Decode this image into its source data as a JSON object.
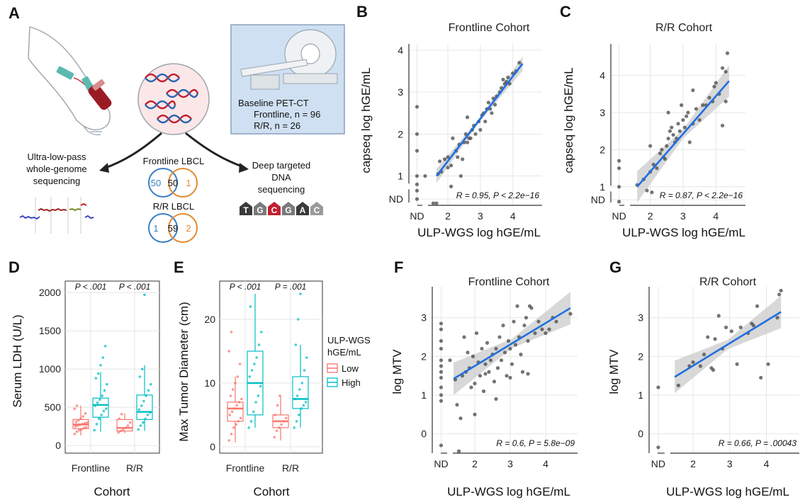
{
  "colors": {
    "fit_line": "#1f6fe0",
    "ci_band": "#c8c8c8",
    "low": "#f8766d",
    "high": "#00bfc4",
    "points": "#4d4d4d",
    "dna_red": "#c2202f",
    "dna_blue": "#2c66b0",
    "venn_blue": "#3a80c2",
    "venn_orange": "#e28b32",
    "petct_bg": "#cfe0f2"
  },
  "panelA": {
    "label": "A",
    "petct_lines": [
      "Baseline PET-CT",
      "Frontline, n = 96",
      "R/R, n = 26"
    ],
    "ulp_lines": [
      "Ultra-low-pass",
      "whole-genome",
      "sequencing"
    ],
    "deep_lines": [
      "Deep targeted",
      "DNA",
      "sequencing"
    ],
    "frontline_title": "Frontline LBCL",
    "frontline_venn": [
      "50",
      "50",
      "1"
    ],
    "rr_title": "R/R LBCL",
    "rr_venn": [
      "1",
      "59",
      "2"
    ],
    "seq_letters": [
      "T",
      "G",
      "C",
      "G",
      "A",
      "C"
    ],
    "icons": [
      "arm-with-blood-draw-icon",
      "dna-helix-icon",
      "pet-ct-scanner-icon",
      "copy-number-plot-icon",
      "sequence-reads-icon"
    ]
  },
  "chart_data": [
    {
      "id": "B",
      "type": "scatter",
      "title": "Frontline Cohort",
      "xlabel": "ULP-WGS log hGE/mL",
      "ylabel": "capseq log hGE/mL",
      "xticks": [
        "ND",
        "2",
        "3",
        "4"
      ],
      "yticks": [
        "ND",
        "1",
        "2",
        "3",
        "4"
      ],
      "xlim": [
        0.8,
        4.9
      ],
      "ylim": [
        0.3,
        4.15
      ],
      "stat": "R = 0.95, P < 2.2e−16",
      "fit": {
        "x0": 1.65,
        "y0": 1.0,
        "x1": 4.3,
        "y1": 3.68
      },
      "points": [
        [
          1.05,
          2.65
        ],
        [
          1.05,
          2.0
        ],
        [
          1.05,
          1.6
        ],
        [
          1.05,
          1.0
        ],
        [
          1.05,
          0.8
        ],
        [
          1.05,
          0.65
        ],
        [
          1.05,
          0.45
        ],
        [
          1.3,
          1.0
        ],
        [
          1.55,
          0.35
        ],
        [
          1.65,
          0.35
        ],
        [
          1.7,
          1.05
        ],
        [
          1.8,
          1.1
        ],
        [
          1.9,
          1.4
        ],
        [
          2.0,
          1.45
        ],
        [
          2.0,
          1.2
        ],
        [
          2.1,
          1.25
        ],
        [
          2.15,
          1.9
        ],
        [
          2.25,
          1.6
        ],
        [
          2.3,
          1.45
        ],
        [
          2.35,
          1.75
        ],
        [
          2.45,
          1.4
        ],
        [
          2.5,
          1.8
        ],
        [
          2.55,
          2.0
        ],
        [
          2.6,
          1.8
        ],
        [
          2.65,
          1.9
        ],
        [
          2.7,
          1.9
        ],
        [
          2.75,
          2.1
        ],
        [
          2.8,
          2.2
        ],
        [
          2.85,
          2.0
        ],
        [
          2.95,
          2.3
        ],
        [
          3.0,
          2.1
        ],
        [
          3.05,
          2.45
        ],
        [
          3.1,
          2.5
        ],
        [
          3.15,
          2.3
        ],
        [
          3.2,
          2.6
        ],
        [
          3.25,
          2.75
        ],
        [
          3.3,
          2.6
        ],
        [
          3.35,
          2.5
        ],
        [
          3.4,
          2.85
        ],
        [
          3.45,
          2.7
        ],
        [
          3.5,
          2.9
        ],
        [
          3.6,
          3.0
        ],
        [
          3.65,
          3.1
        ],
        [
          3.7,
          3.3
        ],
        [
          3.75,
          3.2
        ],
        [
          3.8,
          3.25
        ],
        [
          3.85,
          3.35
        ],
        [
          3.9,
          3.2
        ],
        [
          4.0,
          3.45
        ],
        [
          4.1,
          3.5
        ],
        [
          4.2,
          3.7
        ],
        [
          2.1,
          0.75
        ],
        [
          2.6,
          2.4
        ],
        [
          1.75,
          1.35
        ],
        [
          2.4,
          1.0
        ]
      ]
    },
    {
      "id": "C",
      "type": "scatter",
      "title": "R/R Cohort",
      "xlabel": "ULP-WGS log hGE/mL",
      "ylabel": "capseq log hGE/mL",
      "xticks": [
        "ND",
        "2",
        "3",
        "4"
      ],
      "yticks": [
        "ND",
        "1",
        "2",
        "3",
        "4"
      ],
      "xlim": [
        0.8,
        4.9
      ],
      "ylim": [
        0.5,
        4.85
      ],
      "stat": "R = 0.87, P < 2.2e−16",
      "fit": {
        "x0": 1.6,
        "y0": 1.0,
        "x1": 4.4,
        "y1": 3.85
      },
      "points": [
        [
          1.05,
          1.7
        ],
        [
          1.05,
          1.5
        ],
        [
          1.05,
          1.0
        ],
        [
          1.05,
          0.6
        ],
        [
          1.6,
          1.05
        ],
        [
          1.8,
          1.2
        ],
        [
          1.9,
          0.9
        ],
        [
          2.0,
          1.4
        ],
        [
          2.05,
          0.85
        ],
        [
          2.1,
          1.6
        ],
        [
          2.2,
          1.5
        ],
        [
          2.3,
          1.9
        ],
        [
          2.35,
          2.0
        ],
        [
          2.4,
          1.8
        ],
        [
          2.45,
          1.75
        ],
        [
          2.5,
          2.1
        ],
        [
          2.55,
          2.3
        ],
        [
          2.6,
          2.5
        ],
        [
          2.65,
          2.6
        ],
        [
          2.7,
          2.4
        ],
        [
          2.75,
          2.2
        ],
        [
          2.8,
          2.3
        ],
        [
          2.85,
          2.7
        ],
        [
          2.9,
          2.5
        ],
        [
          2.95,
          3.2
        ],
        [
          3.0,
          2.8
        ],
        [
          3.05,
          2.6
        ],
        [
          3.1,
          2.9
        ],
        [
          3.15,
          3.0
        ],
        [
          3.2,
          2.2
        ],
        [
          3.3,
          2.7
        ],
        [
          3.4,
          3.1
        ],
        [
          3.5,
          2.8
        ],
        [
          3.6,
          3.2
        ],
        [
          3.7,
          3.2
        ],
        [
          3.8,
          3.4
        ],
        [
          3.9,
          3.3
        ],
        [
          3.95,
          3.7
        ],
        [
          4.0,
          3.8
        ],
        [
          4.1,
          3.5
        ],
        [
          4.2,
          4.2
        ],
        [
          4.3,
          4.1
        ],
        [
          4.35,
          4.6
        ],
        [
          4.3,
          3.3
        ],
        [
          4.2,
          2.65
        ],
        [
          2.0,
          2.1
        ],
        [
          2.55,
          3.0
        ],
        [
          3.3,
          3.6
        ]
      ]
    },
    {
      "id": "D",
      "type": "box",
      "xlabel": "Cohort",
      "ylabel": "Serum LDH (U/L)",
      "categories": [
        "Frontline",
        "R/R"
      ],
      "yticks": [
        "0",
        "500",
        "1000",
        "1500",
        "2000"
      ],
      "ylim": [
        -100,
        2150
      ],
      "stats": [
        "P < .001",
        "P < .001"
      ],
      "groups": [
        {
          "cat": "Frontline",
          "level": "Low",
          "q1": 220,
          "median": 275,
          "q3": 340,
          "whisk_lo": 130,
          "whisk_hi": 520,
          "points": [
            150,
            180,
            200,
            210,
            230,
            240,
            250,
            260,
            270,
            280,
            290,
            300,
            310,
            330,
            350,
            380,
            420,
            480,
            520
          ]
        },
        {
          "cat": "Frontline",
          "level": "High",
          "q1": 370,
          "median": 530,
          "q3": 620,
          "whisk_lo": 180,
          "whisk_hi": 960,
          "points": [
            200,
            280,
            350,
            400,
            450,
            480,
            520,
            560,
            600,
            650,
            720,
            800,
            880,
            940,
            1050,
            1150,
            1300
          ]
        },
        {
          "cat": "R/R",
          "level": "Low",
          "q1": 190,
          "median": 230,
          "q3": 340,
          "whisk_lo": 160,
          "whisk_hi": 420,
          "points": [
            170,
            190,
            210,
            230,
            260,
            300,
            350,
            410
          ]
        },
        {
          "cat": "R/R",
          "level": "High",
          "q1": 340,
          "median": 440,
          "q3": 660,
          "whisk_lo": 190,
          "whisk_hi": 1050,
          "points": [
            210,
            260,
            300,
            350,
            400,
            430,
            470,
            520,
            580,
            650,
            720,
            800,
            900,
            1000,
            1970
          ]
        }
      ]
    },
    {
      "id": "E",
      "type": "box",
      "xlabel": "Cohort",
      "ylabel": "Max Tumor Diameter (cm)",
      "categories": [
        "Frontline",
        "R/R"
      ],
      "yticks": [
        "0",
        "10",
        "20"
      ],
      "ylim": [
        -1,
        26
      ],
      "stats": [
        "P < .001",
        "P = .001"
      ],
      "legend": {
        "title_lines": [
          "ULP-WGS",
          "hGE/mL"
        ],
        "items": [
          "Low",
          "High"
        ]
      },
      "groups": [
        {
          "cat": "Frontline",
          "level": "Low",
          "q1": 4.0,
          "median": 6.0,
          "q3": 7.0,
          "whisk_lo": 0.7,
          "whisk_hi": 11,
          "points": [
            1.0,
            2.0,
            3.0,
            3.5,
            4.0,
            4.5,
            5.0,
            5.5,
            6.0,
            6.5,
            7.0,
            7.5,
            8.0,
            9.0,
            10.0,
            11.0,
            13.0,
            15.0,
            18.0
          ]
        },
        {
          "cat": "Frontline",
          "level": "High",
          "q1": 5.0,
          "median": 10.0,
          "q3": 15.0,
          "whisk_lo": 3.0,
          "whisk_hi": 24,
          "points": [
            3.0,
            4.0,
            5.5,
            7.0,
            8.0,
            9.5,
            11.0,
            12.0,
            13.0,
            14.0,
            16.0,
            18.0,
            22.0
          ]
        },
        {
          "cat": "R/R",
          "level": "Low",
          "q1": 3.0,
          "median": 4.0,
          "q3": 5.0,
          "whisk_lo": 1.0,
          "whisk_hi": 8.0,
          "points": [
            1.5,
            2.5,
            3.0,
            3.5,
            4.0,
            4.5,
            5.0,
            6.5,
            8.0
          ]
        },
        {
          "cat": "R/R",
          "level": "High",
          "q1": 6.0,
          "median": 7.5,
          "q3": 11.0,
          "whisk_lo": 3.0,
          "whisk_hi": 16,
          "points": [
            3.0,
            4.0,
            5.0,
            6.0,
            6.5,
            7.0,
            7.5,
            8.0,
            9.0,
            10.0,
            12.0,
            14.0,
            16.0,
            20.0,
            24.0
          ]
        }
      ]
    },
    {
      "id": "F",
      "type": "scatter",
      "title": "Frontline Cohort",
      "xlabel": "ULP-WGS log hGE/mL",
      "ylabel": "log MTV",
      "xticks": [
        "ND",
        "2",
        "3",
        "4"
      ],
      "yticks": [
        "0",
        "1",
        "2",
        "3"
      ],
      "xlim": [
        0.8,
        4.9
      ],
      "ylim": [
        -0.5,
        3.8
      ],
      "stat": "R = 0.6, P = 5.8e−09",
      "fit": {
        "x0": 1.4,
        "y0": 1.42,
        "x1": 4.7,
        "y1": 3.25
      },
      "points": [
        [
          1.05,
          2.85
        ],
        [
          1.05,
          2.7
        ],
        [
          1.05,
          2.4
        ],
        [
          1.05,
          2.2
        ],
        [
          1.05,
          1.9
        ],
        [
          1.05,
          1.75
        ],
        [
          1.05,
          1.6
        ],
        [
          1.05,
          1.45
        ],
        [
          1.05,
          1.2
        ],
        [
          1.05,
          1.0
        ],
        [
          1.05,
          0.85
        ],
        [
          1.05,
          -0.3
        ],
        [
          1.3,
          1.9
        ],
        [
          1.45,
          1.4
        ],
        [
          1.5,
          0.75
        ],
        [
          1.55,
          -0.45
        ],
        [
          1.6,
          0.4
        ],
        [
          1.65,
          1.5
        ],
        [
          1.7,
          2.5
        ],
        [
          1.75,
          1.6
        ],
        [
          1.8,
          2.1
        ],
        [
          1.85,
          1.7
        ],
        [
          1.9,
          1.2
        ],
        [
          1.95,
          2.0
        ],
        [
          2.0,
          1.3
        ],
        [
          2.05,
          2.6
        ],
        [
          2.1,
          1.85
        ],
        [
          2.15,
          1.5
        ],
        [
          2.2,
          2.2
        ],
        [
          2.25,
          1.1
        ],
        [
          2.3,
          1.8
        ],
        [
          2.35,
          2.35
        ],
        [
          2.4,
          1.6
        ],
        [
          2.45,
          1.9
        ],
        [
          2.5,
          2.05
        ],
        [
          2.55,
          1.35
        ],
        [
          2.6,
          2.2
        ],
        [
          2.65,
          1.7
        ],
        [
          2.7,
          2.5
        ],
        [
          2.75,
          1.9
        ],
        [
          2.8,
          2.8
        ],
        [
          2.85,
          2.1
        ],
        [
          2.9,
          1.5
        ],
        [
          2.95,
          2.4
        ],
        [
          3.0,
          2.2
        ],
        [
          3.05,
          1.8
        ],
        [
          3.1,
          2.9
        ],
        [
          3.15,
          2.3
        ],
        [
          3.2,
          3.3
        ],
        [
          3.25,
          2.5
        ],
        [
          3.3,
          2.05
        ],
        [
          3.35,
          1.6
        ],
        [
          3.4,
          2.8
        ],
        [
          3.45,
          3.0
        ],
        [
          3.5,
          2.4
        ],
        [
          3.55,
          3.3
        ],
        [
          3.6,
          3.25
        ],
        [
          3.7,
          2.6
        ],
        [
          3.8,
          2.9
        ],
        [
          3.9,
          2.7
        ],
        [
          4.0,
          2.6
        ],
        [
          4.1,
          2.7
        ],
        [
          4.2,
          3.0
        ],
        [
          4.3,
          2.9
        ],
        [
          4.7,
          3.1
        ],
        [
          2.0,
          0.5
        ],
        [
          2.6,
          0.9
        ],
        [
          2.3,
          1.55
        ],
        [
          3.0,
          1.45
        ],
        [
          3.5,
          1.55
        ]
      ]
    },
    {
      "id": "G",
      "type": "scatter",
      "title": "R/R Cohort",
      "xlabel": "ULP-WGS log hGE/mL",
      "ylabel": "log MTV",
      "xticks": [
        "ND",
        "2",
        "3",
        "4"
      ],
      "yticks": [
        "0",
        "1",
        "2",
        "3"
      ],
      "xlim": [
        0.8,
        4.9
      ],
      "ylim": [
        -0.5,
        3.8
      ],
      "stat": "R = 0.66, P = .00043",
      "fit": {
        "x0": 1.5,
        "y0": 1.47,
        "x1": 4.4,
        "y1": 3.15
      },
      "points": [
        [
          1.05,
          1.2
        ],
        [
          1.05,
          -0.35
        ],
        [
          1.6,
          1.25
        ],
        [
          1.9,
          1.75
        ],
        [
          2.0,
          1.85
        ],
        [
          2.2,
          1.75
        ],
        [
          2.4,
          2.5
        ],
        [
          2.5,
          1.7
        ],
        [
          2.55,
          1.65
        ],
        [
          2.6,
          2.45
        ],
        [
          2.7,
          3.05
        ],
        [
          2.9,
          2.75
        ],
        [
          3.05,
          2.65
        ],
        [
          3.2,
          1.8
        ],
        [
          3.3,
          2.75
        ],
        [
          3.5,
          2.6
        ],
        [
          3.6,
          2.85
        ],
        [
          3.65,
          2.8
        ],
        [
          3.75,
          3.3
        ],
        [
          3.85,
          1.45
        ],
        [
          4.05,
          1.8
        ],
        [
          4.3,
          3.0
        ],
        [
          4.35,
          3.6
        ],
        [
          4.4,
          3.7
        ],
        [
          2.3,
          2.05
        ],
        [
          2.8,
          2.2
        ]
      ]
    }
  ]
}
